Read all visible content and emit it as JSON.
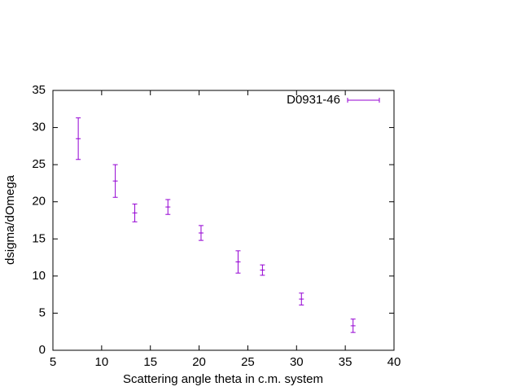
{
  "chart_data": {
    "type": "errorbar",
    "x_label": "Scattering angle theta in c.m. system",
    "y_label": "dsigma/dOmega",
    "x": [
      7.6,
      11.4,
      13.4,
      16.8,
      20.2,
      24.0,
      26.5,
      30.5,
      35.8
    ],
    "series": [
      {
        "name": "D0931-46",
        "color": "#9400d3",
        "values": [
          28.5,
          22.8,
          18.5,
          19.3,
          15.8,
          11.9,
          10.8,
          6.9,
          3.3
        ],
        "errors": [
          2.8,
          2.2,
          1.2,
          1.0,
          1.0,
          1.5,
          0.7,
          0.8,
          0.9
        ]
      }
    ],
    "xlim": [
      5,
      40
    ],
    "xticks": [
      5,
      10,
      15,
      20,
      25,
      30,
      35,
      40
    ],
    "ylim": [
      0,
      35
    ],
    "yticks": [
      0,
      5,
      10,
      15,
      20,
      25,
      30,
      35
    ],
    "legend": "top-right"
  }
}
